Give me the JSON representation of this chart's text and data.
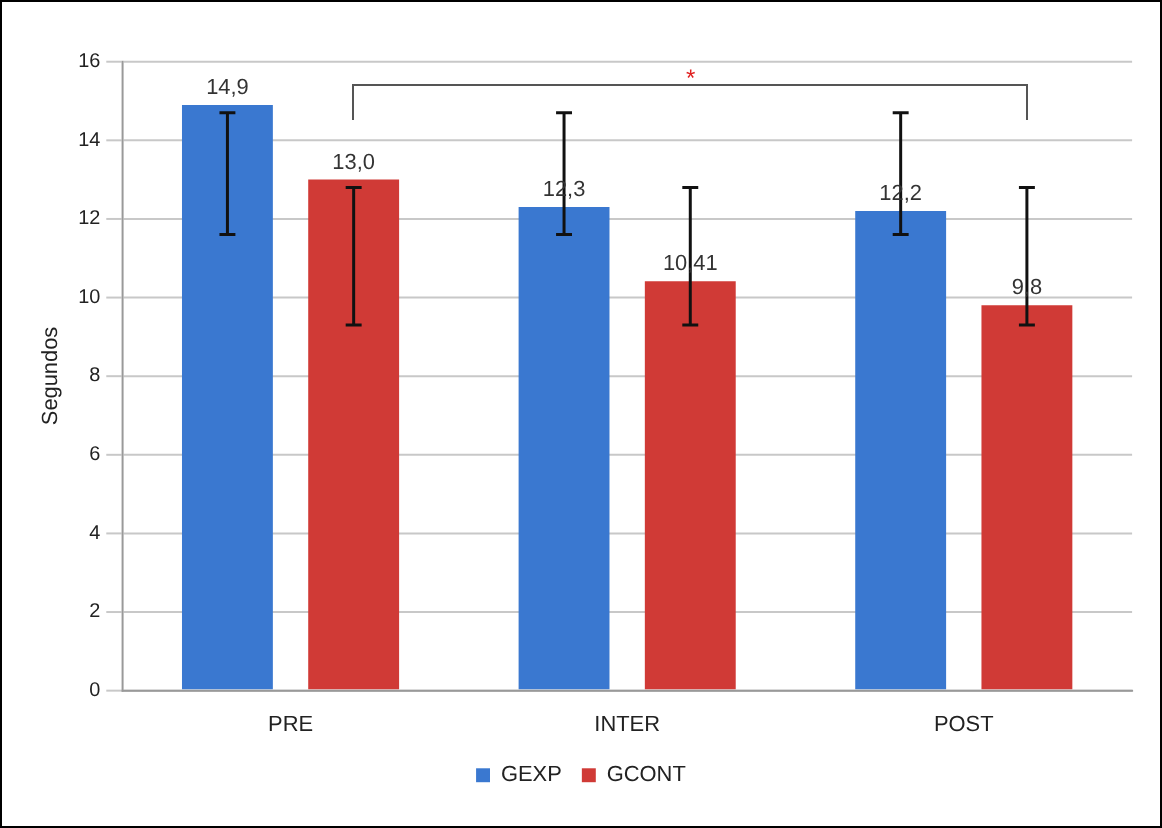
{
  "chart_data": {
    "type": "bar",
    "ylabel": "Segundos",
    "categories": [
      "PRE",
      "INTER",
      "POST"
    ],
    "series": [
      {
        "name": "GEXP",
        "color": "#3a78d0",
        "values": [
          14.9,
          12.3,
          12.2
        ],
        "value_labels": [
          "14,9",
          "12,3",
          "12,2"
        ],
        "errors": [
          [
            11.6,
            14.7
          ],
          [
            11.6,
            14.7
          ],
          [
            11.6,
            14.7
          ]
        ]
      },
      {
        "name": "GCONT",
        "color": "#d03a36",
        "values": [
          13.0,
          10.41,
          9.8
        ],
        "value_labels": [
          "13,0",
          "10,41",
          "9,8"
        ],
        "errors": [
          [
            9.3,
            12.8
          ],
          [
            9.3,
            12.8
          ],
          [
            9.3,
            12.8
          ]
        ]
      }
    ],
    "ylim": [
      0,
      16
    ],
    "yticks": [
      0,
      2,
      4,
      6,
      8,
      10,
      12,
      14,
      16
    ],
    "grid": "y",
    "legend": "bottom",
    "annotations": [
      "*"
    ]
  }
}
